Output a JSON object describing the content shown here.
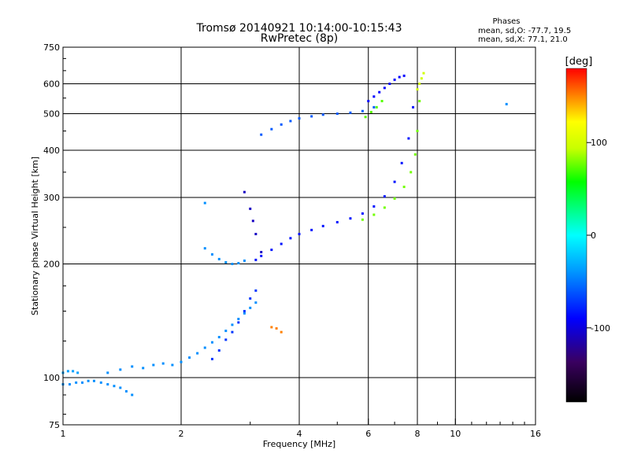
{
  "chart_data": {
    "type": "scatter",
    "title": "Tromsø 20140921 10:14:00-10:15:43",
    "subtitle": "RwPretec (8p)",
    "xlabel": "Frequency [MHz]",
    "ylabel": "Stationary phase Virtual Height [km]",
    "x_scale": "log",
    "y_scale": "log",
    "xlim": [
      1,
      16
    ],
    "ylim": [
      75,
      750
    ],
    "x_ticks": [
      1,
      2,
      4,
      6,
      8,
      10,
      16
    ],
    "y_ticks": [
      75,
      100,
      200,
      300,
      400,
      500,
      600,
      750
    ],
    "grid": true,
    "stats": {
      "heading": "Phases",
      "line_o": "mean, sd,O: -77.7, 19.5",
      "line_x": "mean, sd,X:  77.1, 21.0"
    },
    "colorbar": {
      "label": "[deg]",
      "range": [
        -180,
        180
      ],
      "ticks": [
        100,
        0,
        -100
      ]
    },
    "series": [
      {
        "x": [
          1.0,
          1.04,
          1.08,
          1.12,
          1.16,
          1.2,
          1.25,
          1.3,
          1.35,
          1.4,
          1.45,
          1.5
        ],
        "y": [
          96,
          96,
          97,
          97,
          98,
          98,
          97,
          96,
          95,
          94,
          92,
          90
        ],
        "phase": -60
      },
      {
        "x": [
          1.0,
          1.03,
          1.06,
          1.09
        ],
        "y": [
          103,
          104,
          104,
          103
        ],
        "phase": -55
      },
      {
        "x": [
          1.3,
          1.4,
          1.5,
          1.6,
          1.7,
          1.8,
          1.9,
          2.0,
          2.1,
          2.2,
          2.3,
          2.4,
          2.5,
          2.6,
          2.7,
          2.8,
          2.9,
          3.0,
          3.1
        ],
        "y": [
          103,
          105,
          107,
          106,
          108,
          109,
          108,
          110,
          113,
          116,
          120,
          124,
          128,
          133,
          138,
          143,
          148,
          153,
          158
        ],
        "phase": -60
      },
      {
        "x": [
          2.4,
          2.5,
          2.6,
          2.7,
          2.8,
          2.9,
          3.0,
          3.1
        ],
        "y": [
          112,
          118,
          126,
          132,
          140,
          150,
          162,
          170
        ],
        "phase": -85
      },
      {
        "x": [
          2.3,
          2.4,
          2.5,
          2.6,
          2.7,
          2.8,
          2.9
        ],
        "y": [
          220,
          212,
          206,
          202,
          200,
          201,
          204
        ],
        "phase": -60
      },
      {
        "x": [
          2.9,
          3.0,
          3.05,
          3.1,
          3.2
        ],
        "y": [
          310,
          280,
          260,
          240,
          215
        ],
        "phase": -115
      },
      {
        "x": [
          3.1,
          3.2,
          3.4,
          3.6,
          3.8,
          4.0,
          4.3,
          4.6,
          5.0,
          5.4,
          5.8,
          6.2,
          6.6,
          7.0,
          7.3,
          7.6,
          7.8
        ],
        "y": [
          205,
          210,
          218,
          226,
          234,
          240,
          246,
          252,
          258,
          264,
          272,
          284,
          302,
          330,
          370,
          430,
          520
        ],
        "phase": -95
      },
      {
        "x": [
          3.2,
          3.4,
          3.6,
          3.8,
          4.0,
          4.3,
          4.6,
          5.0,
          5.4,
          5.8,
          6.2
        ],
        "y": [
          440,
          455,
          468,
          478,
          486,
          492,
          497,
          500,
          503,
          508,
          520
        ],
        "phase": -75
      },
      {
        "x": [
          6.0,
          6.2,
          6.4,
          6.6,
          6.8,
          7.0,
          7.2,
          7.4
        ],
        "y": [
          540,
          555,
          570,
          585,
          600,
          615,
          625,
          630
        ],
        "phase": -100
      },
      {
        "x": [
          5.8,
          6.2,
          6.6,
          7.0,
          7.4,
          7.7,
          7.9,
          8.0,
          8.1
        ],
        "y": [
          262,
          270,
          282,
          298,
          320,
          350,
          390,
          450,
          540
        ],
        "phase": 80
      },
      {
        "x": [
          5.9,
          6.1,
          6.3,
          6.5
        ],
        "y": [
          490,
          505,
          520,
          540
        ],
        "phase": 75
      },
      {
        "x": [
          8.0,
          8.1,
          8.2,
          8.3
        ],
        "y": [
          580,
          600,
          620,
          640
        ],
        "phase": 100
      },
      {
        "x": [
          3.4,
          3.5,
          3.6
        ],
        "y": [
          136,
          135,
          132
        ],
        "phase": 150
      },
      {
        "x": [
          2.3,
          13.5
        ],
        "y": [
          290,
          530
        ],
        "phase": -60
      }
    ]
  }
}
